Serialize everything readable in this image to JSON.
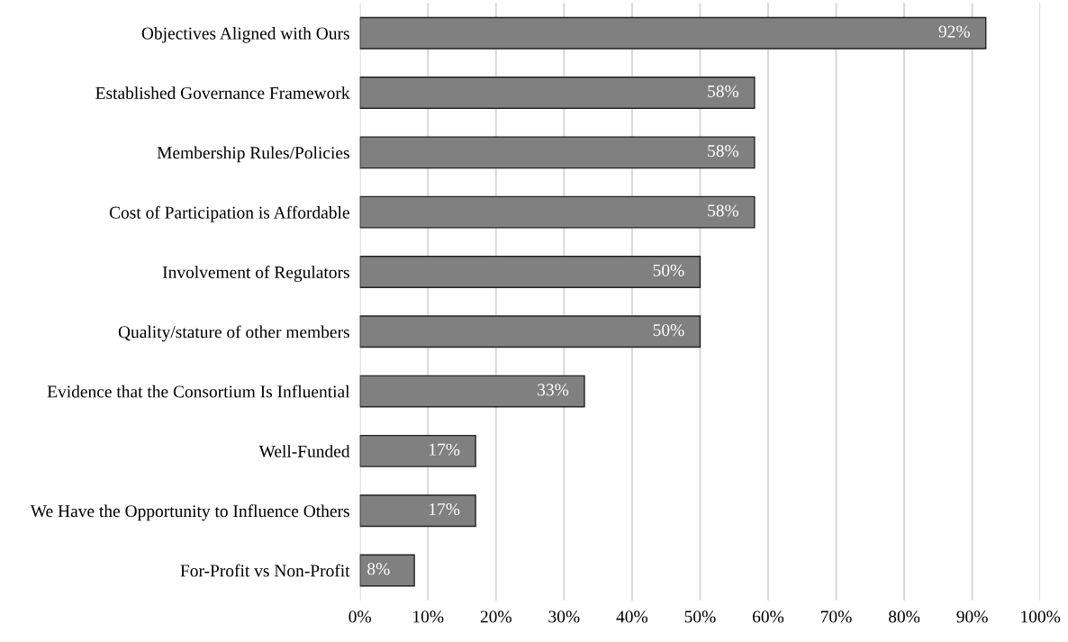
{
  "chart_data": {
    "type": "bar",
    "orientation": "horizontal",
    "categories": [
      "Objectives Aligned with Ours",
      "Established Governance Framework",
      "Membership Rules/Policies",
      "Cost of Participation is Affordable",
      "Involvement of Regulators",
      "Quality/stature of other members",
      "Evidence that the Consortium Is Influential",
      "Well-Funded",
      "We Have the Opportunity to Influence Others",
      "For-Profit vs Non-Profit"
    ],
    "values": [
      92,
      58,
      58,
      58,
      50,
      50,
      33,
      17,
      17,
      8
    ],
    "value_labels": [
      "92%",
      "58%",
      "58%",
      "58%",
      "50%",
      "50%",
      "33%",
      "17%",
      "17%",
      "8%"
    ],
    "color": "#808080",
    "xlim": [
      0,
      100
    ],
    "xticks": [
      {
        "value": 0,
        "label": "0%"
      },
      {
        "value": 10,
        "label": "10%"
      },
      {
        "value": 20,
        "label": "20%"
      },
      {
        "value": 30,
        "label": "30%"
      },
      {
        "value": 40,
        "label": "40%"
      },
      {
        "value": 50,
        "label": "50%"
      },
      {
        "value": 60,
        "label": "60%"
      },
      {
        "value": 70,
        "label": "70%"
      },
      {
        "value": 80,
        "label": "80%"
      },
      {
        "value": 90,
        "label": "90%"
      },
      {
        "value": 100,
        "label": "100%"
      }
    ],
    "grid": "x",
    "legend": false
  }
}
